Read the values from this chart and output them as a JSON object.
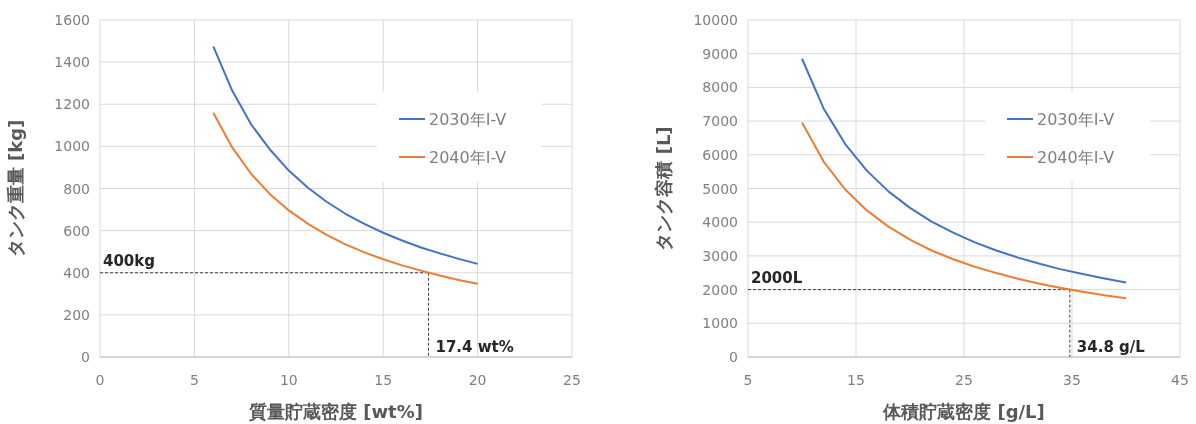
{
  "chart_data": [
    {
      "type": "line",
      "xlabel": "質量貯蔵密度 [wt%]",
      "ylabel": "タンク重量 [kg]",
      "x": [
        6,
        7,
        8,
        9,
        10,
        11,
        12,
        13,
        14,
        15,
        16,
        17,
        18,
        19,
        20
      ],
      "series": [
        {
          "name": "2030年I-V",
          "color": "#4472c4",
          "values": [
            1475,
            1265,
            1105,
            985,
            885,
            805,
            737,
            680,
            632,
            590,
            553,
            520,
            492,
            466,
            442
          ]
        },
        {
          "name": "2040年I-V",
          "color": "#ed7d31",
          "values": [
            1160,
            995,
            870,
            773,
            696,
            633,
            580,
            535,
            497,
            464,
            435,
            410,
            387,
            366,
            348
          ]
        }
      ],
      "xlim": [
        0,
        25
      ],
      "xticks": [
        0,
        5,
        10,
        15,
        20,
        25
      ],
      "ylim": [
        0,
        1600
      ],
      "yticks": [
        0,
        200,
        400,
        600,
        800,
        1000,
        1200,
        1400,
        1600
      ],
      "ref_lines": [
        {
          "axis": "y",
          "value": 400,
          "label": "400kg",
          "line_style": "dashed"
        },
        {
          "axis": "x",
          "value": 17.4,
          "label": "17.4 wt%",
          "line_style": "dashed"
        }
      ],
      "grid": true,
      "legend": "top right",
      "marker": "none",
      "line_style": "solid"
    },
    {
      "type": "line",
      "xlabel": "体積貯蔵密度 [g/L]",
      "ylabel": "タンク容積 [L]",
      "x": [
        10,
        12,
        14,
        16,
        18,
        20,
        22,
        24,
        26,
        28,
        30,
        32,
        34,
        36,
        38,
        40
      ],
      "series": [
        {
          "name": "2030年I-V",
          "color": "#4472c4",
          "values": [
            8850,
            7375,
            6320,
            5530,
            4915,
            4425,
            4020,
            3690,
            3400,
            3160,
            2950,
            2765,
            2600,
            2460,
            2330,
            2212
          ]
        },
        {
          "name": "2040年I-V",
          "color": "#ed7d31",
          "values": [
            6960,
            5800,
            4970,
            4350,
            3870,
            3480,
            3160,
            2900,
            2680,
            2490,
            2320,
            2175,
            2050,
            1935,
            1830,
            1740
          ]
        }
      ],
      "xlim": [
        5,
        45
      ],
      "xticks": [
        5,
        15,
        25,
        35,
        45
      ],
      "ylim": [
        0,
        10000
      ],
      "yticks": [
        0,
        1000,
        2000,
        3000,
        4000,
        5000,
        6000,
        7000,
        8000,
        9000,
        10000
      ],
      "ref_lines": [
        {
          "axis": "y",
          "value": 2000,
          "label": "2000L",
          "line_style": "dashed"
        },
        {
          "axis": "x",
          "value": 34.8,
          "label": "34.8 g/L",
          "line_style": "dashed"
        }
      ],
      "grid": true,
      "legend": "top right",
      "marker": "none",
      "line_style": "solid"
    }
  ]
}
